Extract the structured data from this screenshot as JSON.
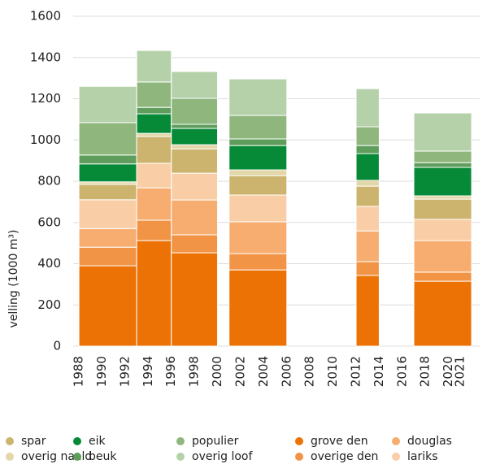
{
  "chart_data": {
    "type": "stacked-period-bar",
    "y_label": "velling (1000 m³)",
    "x_start": [
      1988,
      1993,
      1996,
      2001,
      2012,
      2017
    ],
    "x_end": [
      1993,
      1996,
      2000,
      2006,
      2014,
      2022
    ],
    "xlim": [
      1987.5,
      2022.7
    ],
    "xticks": [
      1988,
      1990,
      1992,
      1994,
      1996,
      1998,
      2000,
      2002,
      2004,
      2006,
      2008,
      2010,
      2012,
      2014,
      2016,
      2018,
      2020,
      2021
    ],
    "ylim": [
      0,
      1600
    ],
    "yticks": [
      0,
      200,
      400,
      600,
      800,
      1000,
      1200,
      1400,
      1600
    ],
    "grid": true,
    "series": [
      {
        "name": "grove den",
        "color": "#ec7205",
        "values": [
          390,
          512,
          453,
          370,
          343,
          315
        ]
      },
      {
        "name": "overige den",
        "color": "#f29445",
        "values": [
          90,
          99,
          87,
          79,
          67,
          44
        ]
      },
      {
        "name": "douglas",
        "color": "#f6ad6f",
        "values": [
          90,
          157,
          169,
          154,
          149,
          153
        ]
      },
      {
        "name": "lariks",
        "color": "#f9cda5",
        "values": [
          140,
          119,
          130,
          130,
          119,
          103
        ]
      },
      {
        "name": "spar",
        "color": "#ccb46e",
        "values": [
          75,
          130,
          118,
          94,
          98,
          98
        ]
      },
      {
        "name": "overig naald",
        "color": "#e3d6a8",
        "values": [
          12,
          15,
          20,
          28,
          28,
          16
        ]
      },
      {
        "name": "eik",
        "color": "#078a38",
        "values": [
          87,
          95,
          79,
          118,
          130,
          138
        ]
      },
      {
        "name": "beuk",
        "color": "#5e9d5b",
        "values": [
          43,
          31,
          20,
          32,
          39,
          23
        ]
      },
      {
        "name": "populier",
        "color": "#8fb77d",
        "values": [
          157,
          123,
          126,
          114,
          91,
          56
        ]
      },
      {
        "name": "overig loof",
        "color": "#b5d1aa",
        "values": [
          176,
          153,
          130,
          177,
          185,
          185
        ]
      }
    ]
  }
}
